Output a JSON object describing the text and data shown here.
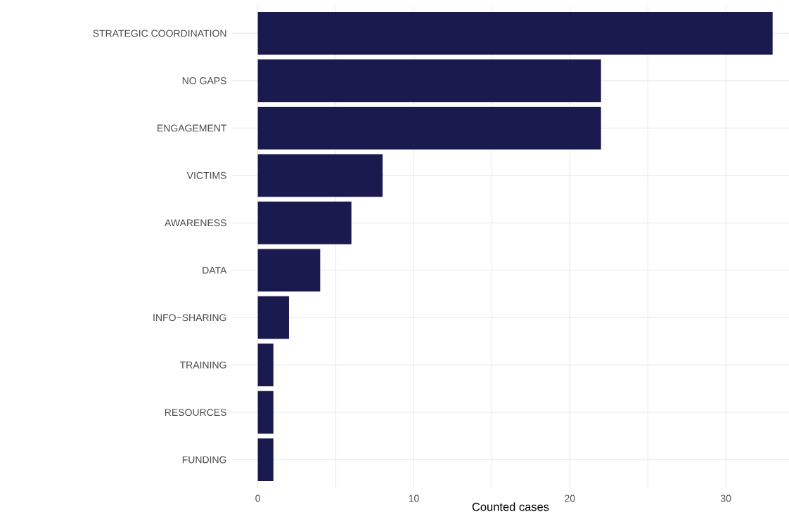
{
  "chart_data": {
    "type": "bar",
    "orientation": "horizontal",
    "xlabel": "Counted cases",
    "categories": [
      "STRATEGIC COORDINATION",
      "NO GAPS",
      "ENGAGEMENT",
      "VICTIMS",
      "AWARENESS",
      "DATA",
      "INFO−SHARING",
      "TRAINING",
      "RESOURCES",
      "FUNDING"
    ],
    "values": [
      33,
      22,
      22,
      8,
      6,
      4,
      2,
      1,
      1,
      1
    ],
    "color": "#1b1a4f",
    "xlim": [
      -1.65,
      34.05
    ],
    "xticks": [
      0,
      {
        "value": 5,
        "label": null
      },
      10,
      {
        "value": 15,
        "label": null
      },
      20,
      {
        "value": 25,
        "label": null
      },
      30
    ],
    "grid": true
  }
}
